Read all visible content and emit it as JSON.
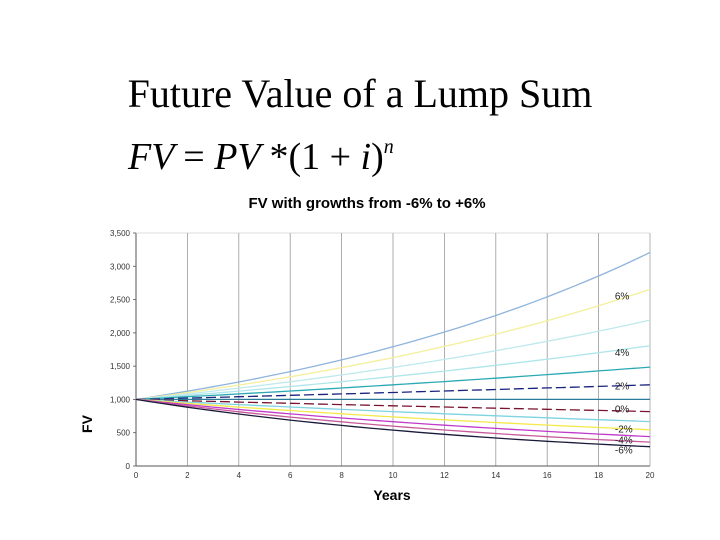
{
  "slide": {
    "title": "Future Value of a Lump Sum",
    "formula": {
      "lhs": "FV",
      "rhs": "PV",
      "op": "*",
      "rate": "i",
      "exponent": "n"
    }
  },
  "chart_data": {
    "type": "line",
    "title": "FV with growths from -6% to +6%",
    "xlabel": "Years",
    "ylabel": "FV",
    "xlim": [
      0,
      20
    ],
    "ylim": [
      0,
      3500
    ],
    "xticks": [
      0,
      2,
      4,
      6,
      8,
      10,
      12,
      14,
      16,
      18,
      20
    ],
    "yticks": [
      0,
      500,
      1000,
      1500,
      2000,
      2500,
      3000,
      3500
    ],
    "ytick_labels": [
      "0",
      "500",
      "1,000",
      "1,500",
      "2,000",
      "2,500",
      "3,000",
      "3,500"
    ],
    "grid": {
      "vertical": true,
      "horizontal": false
    },
    "present_value": 1000,
    "series": [
      {
        "rate": 0.06,
        "color": "#8fb4dc",
        "dash": false
      },
      {
        "rate": 0.05,
        "color": "#f3ef9a",
        "dash": false
      },
      {
        "rate": 0.04,
        "color": "#bfe9ec",
        "dash": false
      },
      {
        "rate": 0.03,
        "color": "#aee6ea",
        "dash": false
      },
      {
        "rate": 0.02,
        "color": "#2aa9b4",
        "dash": false
      },
      {
        "rate": 0.01,
        "color": "#1a237e",
        "dash": true
      },
      {
        "rate": 0.0,
        "color": "#2b7a9a",
        "dash": false
      },
      {
        "rate": -0.01,
        "color": "#7b1430",
        "dash": true
      },
      {
        "rate": -0.02,
        "color": "#7ed3e0",
        "dash": false
      },
      {
        "rate": -0.03,
        "color": "#f3e94a",
        "dash": false
      },
      {
        "rate": -0.04,
        "color": "#c03acb",
        "dash": false
      },
      {
        "rate": -0.05,
        "color": "#c75b9a",
        "dash": false
      },
      {
        "rate": -0.06,
        "color": "#1a1a3a",
        "dash": false
      }
    ],
    "annotations": [
      {
        "text": "6%",
        "x": 19.8,
        "y": 2500
      },
      {
        "text": "4%",
        "x": 19.8,
        "y": 1650
      },
      {
        "text": "2%",
        "x": 19.8,
        "y": 1150
      },
      {
        "text": "0%",
        "x": 19.8,
        "y": 800
      },
      {
        "text": "-2%",
        "x": 19.8,
        "y": 500
      },
      {
        "text": "-4%",
        "x": 19.8,
        "y": 340
      },
      {
        "text": "-6%",
        "x": 19.8,
        "y": 190
      }
    ]
  }
}
